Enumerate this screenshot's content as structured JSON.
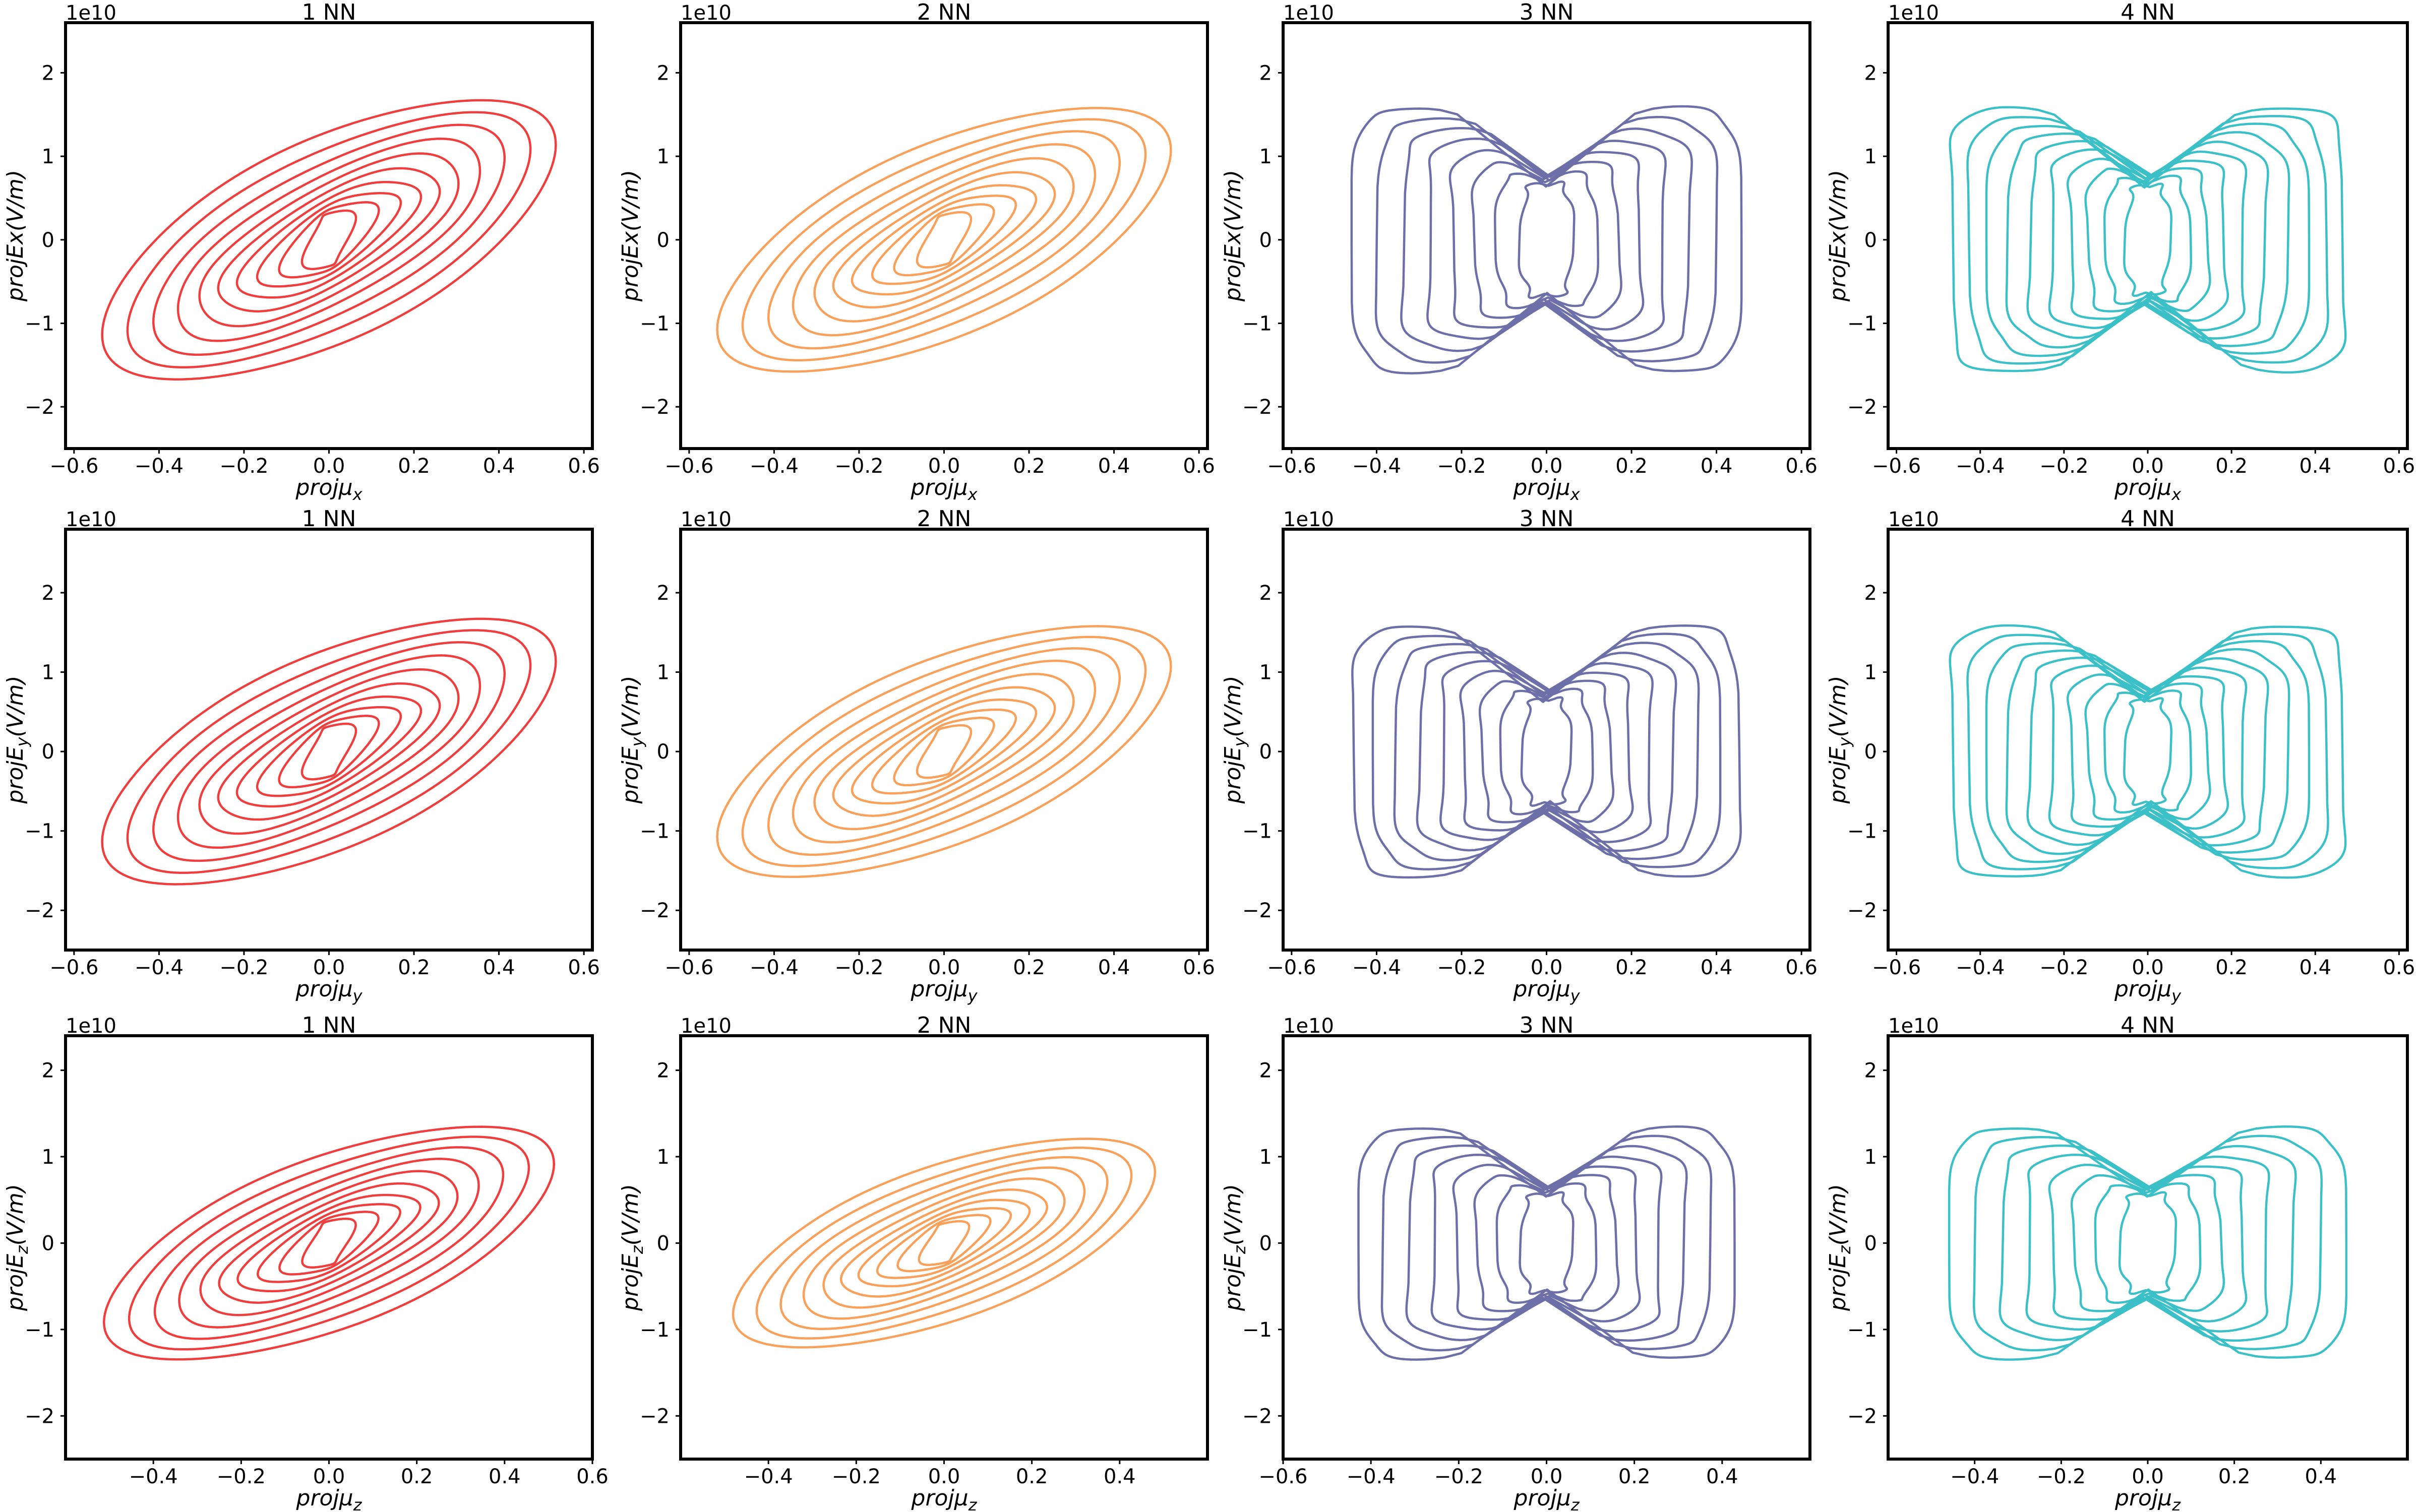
{
  "figure": {
    "offset_text": "1e10",
    "tick_labels_x": [
      "−0.6",
      "−0.4",
      "−0.2",
      "0.0",
      "0.2",
      "0.4",
      "0.6"
    ],
    "tick_labels_y": [
      "−2",
      "−1",
      "0",
      "1",
      "2"
    ],
    "row_labels": [
      {
        "xlabel": "projμ",
        "xsub": "x",
        "ylabel": "projEx(V/m)",
        "ysub": ""
      },
      {
        "xlabel": "projμ",
        "xsub": "y",
        "ylabel": "projE",
        "ysub": "y",
        "ysuffix": "(V/m)"
      },
      {
        "xlabel": "projμ",
        "xsub": "z",
        "ylabel": "projE",
        "ysub": "z",
        "ysuffix": "(V/m)"
      }
    ],
    "column_titles": [
      "1 NN",
      "2 NN",
      "3 NN",
      "4 NN"
    ],
    "column_colors": [
      "#ef3e3e",
      "#f9a05a",
      "#6c6fa8",
      "#3cc0c8"
    ]
  },
  "chart_data": [
    {
      "type": "contour",
      "title": "1 NN",
      "row": 0,
      "col": 0,
      "xlabel": "projμx",
      "ylabel": "projEx(V/m)",
      "xlim": [
        -0.62,
        0.62
      ],
      "ylim": [
        -2.5,
        2.6
      ],
      "y_scale_factor": "1e10",
      "xticks": [
        -0.6,
        -0.4,
        -0.2,
        0.0,
        0.2,
        0.4,
        0.6
      ],
      "yticks": [
        -2,
        -1,
        0,
        1,
        2
      ],
      "shape": "correlated",
      "center": [
        0.0,
        0.0
      ],
      "outer_extent_x": [
        -0.5,
        0.5
      ],
      "outer_extent_y": [
        -1.7,
        1.8
      ],
      "levels": 10,
      "color": "#ef3e3e"
    },
    {
      "type": "contour",
      "title": "2 NN",
      "row": 0,
      "col": 1,
      "xlabel": "projμx",
      "ylabel": "projEx(V/m)",
      "xlim": [
        -0.62,
        0.62
      ],
      "ylim": [
        -2.5,
        2.6
      ],
      "y_scale_factor": "1e10",
      "xticks": [
        -0.6,
        -0.4,
        -0.2,
        0.0,
        0.2,
        0.4,
        0.6
      ],
      "yticks": [
        -2,
        -1,
        0,
        1,
        2
      ],
      "shape": "correlated",
      "center": [
        0.0,
        0.0
      ],
      "outer_extent_x": [
        -0.5,
        0.5
      ],
      "outer_extent_y": [
        -1.7,
        1.7
      ],
      "levels": 10,
      "color": "#f9a05a"
    },
    {
      "type": "contour",
      "title": "3 NN",
      "row": 0,
      "col": 2,
      "xlabel": "projμx",
      "ylabel": "projEx(V/m)",
      "xlim": [
        -0.62,
        0.62
      ],
      "ylim": [
        -2.5,
        2.6
      ],
      "y_scale_factor": "1e10",
      "xticks": [
        -0.6,
        -0.4,
        -0.2,
        0.0,
        0.2,
        0.4,
        0.6
      ],
      "yticks": [
        -2,
        -1,
        0,
        1,
        2
      ],
      "shape": "hourglass",
      "center": [
        0.0,
        0.0
      ],
      "outer_extent_x": [
        -0.45,
        0.45
      ],
      "outer_extent_y": [
        -1.6,
        1.6
      ],
      "levels": 8,
      "color": "#6c6fa8"
    },
    {
      "type": "contour",
      "title": "4 NN",
      "row": 0,
      "col": 3,
      "xlabel": "projμx",
      "ylabel": "projEx(V/m)",
      "xlim": [
        -0.62,
        0.62
      ],
      "ylim": [
        -2.5,
        2.6
      ],
      "y_scale_factor": "1e10",
      "xticks": [
        -0.6,
        -0.4,
        -0.2,
        0.0,
        0.2,
        0.4,
        0.6
      ],
      "yticks": [
        -2,
        -1,
        0,
        1,
        2
      ],
      "shape": "hourglass",
      "center": [
        0.0,
        0.0
      ],
      "outer_extent_x": [
        -0.47,
        0.47
      ],
      "outer_extent_y": [
        -1.6,
        1.6
      ],
      "levels": 10,
      "color": "#3cc0c8"
    },
    {
      "type": "contour",
      "title": "1 NN",
      "row": 1,
      "col": 0,
      "xlabel": "projμy",
      "ylabel": "projEy(V/m)",
      "xlim": [
        -0.62,
        0.62
      ],
      "ylim": [
        -2.5,
        2.8
      ],
      "y_scale_factor": "1e10",
      "xticks": [
        -0.6,
        -0.4,
        -0.2,
        0.0,
        0.2,
        0.4,
        0.6
      ],
      "yticks": [
        -2,
        -1,
        0,
        1,
        2
      ],
      "shape": "correlated",
      "center": [
        0.0,
        0.0
      ],
      "outer_extent_x": [
        -0.5,
        0.5
      ],
      "outer_extent_y": [
        -1.7,
        1.8
      ],
      "levels": 10,
      "color": "#ef3e3e"
    },
    {
      "type": "contour",
      "title": "2 NN",
      "row": 1,
      "col": 1,
      "xlabel": "projμy",
      "ylabel": "projEy(V/m)",
      "xlim": [
        -0.62,
        0.62
      ],
      "ylim": [
        -2.5,
        2.8
      ],
      "y_scale_factor": "1e10",
      "xticks": [
        -0.6,
        -0.4,
        -0.2,
        0.0,
        0.2,
        0.4,
        0.6
      ],
      "yticks": [
        -2,
        -1,
        0,
        1,
        2
      ],
      "shape": "correlated",
      "center": [
        0.0,
        0.0
      ],
      "outer_extent_x": [
        -0.5,
        0.5
      ],
      "outer_extent_y": [
        -1.7,
        1.7
      ],
      "levels": 10,
      "color": "#f9a05a"
    },
    {
      "type": "contour",
      "title": "3 NN",
      "row": 1,
      "col": 2,
      "xlabel": "projμy",
      "ylabel": "projEy(V/m)",
      "xlim": [
        -0.62,
        0.62
      ],
      "ylim": [
        -2.5,
        2.8
      ],
      "y_scale_factor": "1e10",
      "xticks": [
        -0.6,
        -0.4,
        -0.2,
        0.0,
        0.2,
        0.4,
        0.6
      ],
      "yticks": [
        -2,
        -1,
        0,
        1,
        2
      ],
      "shape": "hourglass",
      "center": [
        0.0,
        0.0
      ],
      "outer_extent_x": [
        -0.45,
        0.45
      ],
      "outer_extent_y": [
        -1.6,
        1.6
      ],
      "levels": 9,
      "color": "#6c6fa8"
    },
    {
      "type": "contour",
      "title": "4 NN",
      "row": 1,
      "col": 3,
      "xlabel": "projμy",
      "ylabel": "projEy(V/m)",
      "xlim": [
        -0.62,
        0.62
      ],
      "ylim": [
        -2.5,
        2.8
      ],
      "y_scale_factor": "1e10",
      "xticks": [
        -0.6,
        -0.4,
        -0.2,
        0.0,
        0.2,
        0.4,
        0.6
      ],
      "yticks": [
        -2,
        -1,
        0,
        1,
        2
      ],
      "shape": "hourglass",
      "center": [
        0.0,
        0.0
      ],
      "outer_extent_x": [
        -0.47,
        0.47
      ],
      "outer_extent_y": [
        -1.6,
        1.6
      ],
      "levels": 10,
      "color": "#3cc0c8"
    },
    {
      "type": "contour",
      "title": "1 NN",
      "row": 2,
      "col": 0,
      "xlabel": "projμz",
      "ylabel": "projEz(V/m)",
      "xlim": [
        -0.6,
        0.6
      ],
      "ylim": [
        -2.5,
        2.4
      ],
      "y_scale_factor": "1e10",
      "xticks": [
        -0.4,
        -0.2,
        0.0,
        0.2,
        0.4,
        0.6
      ],
      "yticks": [
        -2,
        -1,
        0,
        1,
        2
      ],
      "shape": "correlated",
      "center": [
        0.0,
        0.0
      ],
      "outer_extent_x": [
        -0.42,
        0.48
      ],
      "outer_extent_y": [
        -1.35,
        1.45
      ],
      "levels": 10,
      "color": "#ef3e3e"
    },
    {
      "type": "contour",
      "title": "2 NN",
      "row": 2,
      "col": 1,
      "xlabel": "projμz",
      "ylabel": "projEz(V/m)",
      "xlim": [
        -0.6,
        0.6
      ],
      "ylim": [
        -2.5,
        2.4
      ],
      "y_scale_factor": "1e10",
      "xticks": [
        -0.4,
        -0.2,
        0.0,
        0.2,
        0.4
      ],
      "yticks": [
        -2,
        -1,
        0,
        1,
        2
      ],
      "shape": "correlated",
      "center": [
        0.0,
        0.0
      ],
      "outer_extent_x": [
        -0.4,
        0.45
      ],
      "outer_extent_y": [
        -1.3,
        1.2
      ],
      "levels": 10,
      "color": "#f9a05a"
    },
    {
      "type": "contour",
      "title": "3 NN",
      "row": 2,
      "col": 2,
      "xlabel": "projμz",
      "ylabel": "projEz(V/m)",
      "xlim": [
        -0.6,
        0.6
      ],
      "ylim": [
        -2.5,
        2.4
      ],
      "y_scale_factor": "1e10",
      "xticks": [
        -0.6,
        -0.4,
        -0.2,
        0.0,
        0.2,
        0.4
      ],
      "yticks": [
        -2,
        -1,
        0,
        1,
        2
      ],
      "shape": "hourglass",
      "center": [
        0.0,
        0.0
      ],
      "outer_extent_x": [
        -0.38,
        0.42
      ],
      "outer_extent_y": [
        -1.25,
        1.35
      ],
      "levels": 8,
      "color": "#6c6fa8"
    },
    {
      "type": "contour",
      "title": "4 NN",
      "row": 2,
      "col": 3,
      "xlabel": "projμz",
      "ylabel": "projEz(V/m)",
      "xlim": [
        -0.6,
        0.6
      ],
      "ylim": [
        -2.5,
        2.4
      ],
      "y_scale_factor": "1e10",
      "xticks": [
        -0.4,
        -0.2,
        0.0,
        0.2,
        0.4
      ],
      "yticks": [
        -2,
        -1,
        0,
        1,
        2
      ],
      "shape": "hourglass",
      "center": [
        0.0,
        0.0
      ],
      "outer_extent_x": [
        -0.4,
        0.45
      ],
      "outer_extent_y": [
        -1.3,
        1.35
      ],
      "levels": 8,
      "color": "#3cc0c8"
    }
  ]
}
